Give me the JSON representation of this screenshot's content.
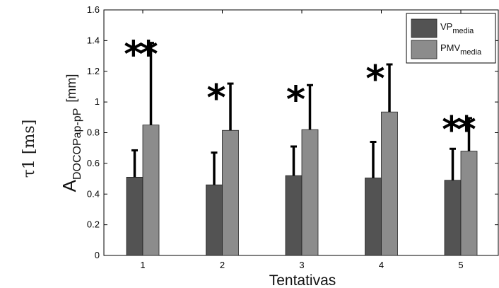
{
  "chart_data": {
    "type": "bar",
    "categories": [
      "1",
      "2",
      "3",
      "4",
      "5"
    ],
    "series": [
      {
        "name": "VP",
        "subscript": "media",
        "color": "#535353",
        "values": [
          0.51,
          0.46,
          0.52,
          0.505,
          0.49
        ],
        "errors": [
          0.175,
          0.21,
          0.19,
          0.235,
          0.205
        ]
      },
      {
        "name": "PMV",
        "subscript": "media",
        "color": "#8c8c8c",
        "values": [
          0.85,
          0.815,
          0.82,
          0.935,
          0.68
        ],
        "errors": [
          0.535,
          0.305,
          0.29,
          0.31,
          0.215
        ]
      }
    ],
    "significance": [
      "**",
      "*",
      "*",
      "*",
      "**"
    ],
    "xlabel": "Tentativas",
    "ylabel_main": "A",
    "ylabel_sub": "DOCOPap-pP",
    "ylabel_unit": "[mm]",
    "outer_label": "τ1 [ms]",
    "ylim": [
      0,
      1.6
    ],
    "yticks": [
      "0",
      "0.2",
      "0.4",
      "0.6",
      "0.8",
      "1",
      "1.2",
      "1.4",
      "1.6"
    ],
    "legend_position": "top-right",
    "grid": false
  }
}
